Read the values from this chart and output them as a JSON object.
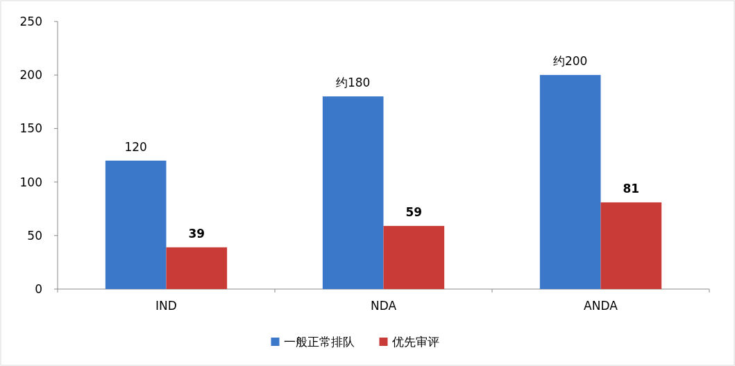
{
  "chart_data": {
    "type": "bar",
    "categories": [
      "IND",
      "NDA",
      "ANDA"
    ],
    "series": [
      {
        "name": "一般正常排队",
        "color": "#3b78c9",
        "values": [
          120,
          180,
          200
        ],
        "value_labels": [
          "120",
          "约180",
          "约200"
        ]
      },
      {
        "name": "优先审评",
        "color": "#c93b37",
        "values": [
          39,
          59,
          81
        ],
        "value_labels": [
          "39",
          "59",
          "81"
        ]
      }
    ],
    "ylim": [
      0,
      250
    ],
    "yticks": [
      0,
      50,
      100,
      150,
      200,
      250
    ],
    "grid": false,
    "legend": "bottom"
  }
}
